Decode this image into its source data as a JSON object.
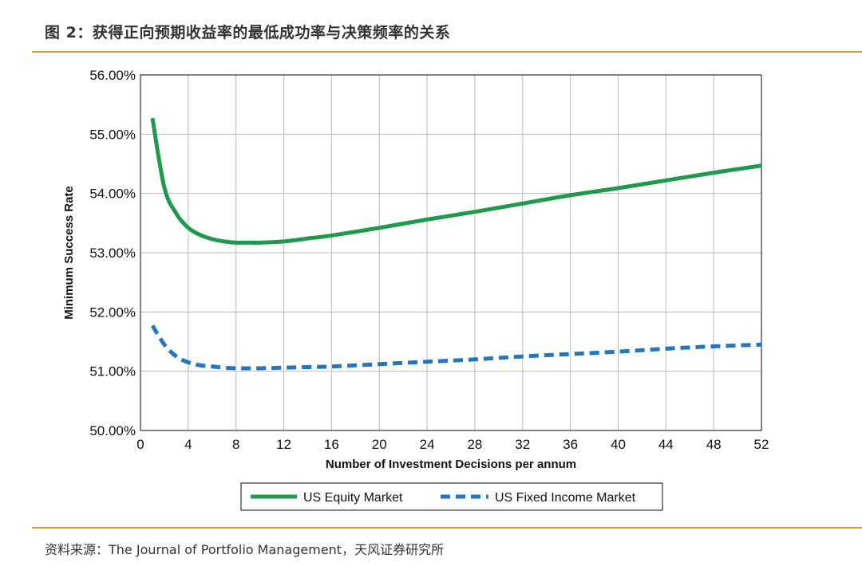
{
  "figure": {
    "title": "图 2：获得正向预期收益率的最低成功率与决策频率的关系",
    "source": "资料来源：The Journal of Portfolio Management，天风证券研究所"
  },
  "colors": {
    "accent_rule": "#e8963c",
    "equity": "#1f9a4c",
    "fixed_income": "#2476bd",
    "grid": "#b9b9b9",
    "axis": "#333333"
  },
  "chart_data": {
    "type": "line",
    "title": "",
    "xlabel": "Number of Investment Decisions per annum",
    "ylabel": "Minimum Success Rate",
    "xlim": [
      0,
      52
    ],
    "ylim": [
      0.5,
      0.56
    ],
    "x_ticks": [
      0,
      4,
      8,
      12,
      16,
      20,
      24,
      28,
      32,
      36,
      40,
      44,
      48,
      52
    ],
    "y_ticks": [
      0.5,
      0.51,
      0.52,
      0.53,
      0.54,
      0.55,
      0.56
    ],
    "x_tick_labels": [
      "0",
      "4",
      "8",
      "12",
      "16",
      "20",
      "24",
      "28",
      "32",
      "36",
      "40",
      "44",
      "48",
      "52"
    ],
    "y_tick_labels": [
      "50.00%",
      "51.00%",
      "52.00%",
      "53.00%",
      "54.00%",
      "55.00%",
      "56.00%"
    ],
    "grid": true,
    "legend_position": "bottom-center",
    "series": [
      {
        "name": "US Equity Market",
        "style": "solid",
        "x": [
          1,
          2,
          3,
          4,
          5,
          6,
          7,
          8,
          9,
          10,
          12,
          14,
          16,
          20,
          24,
          28,
          32,
          36,
          40,
          44,
          48,
          52
        ],
        "values": [
          0.5527,
          0.541,
          0.5366,
          0.5342,
          0.533,
          0.5323,
          0.5319,
          0.5317,
          0.5317,
          0.5317,
          0.5319,
          0.5324,
          0.5329,
          0.5342,
          0.5356,
          0.5369,
          0.5383,
          0.5397,
          0.5409,
          0.5422,
          0.5435,
          0.5447
        ]
      },
      {
        "name": "US Fixed Income Market",
        "style": "dashed",
        "x": [
          1,
          2,
          3,
          4,
          5,
          6,
          7,
          8,
          9,
          10,
          12,
          14,
          16,
          20,
          24,
          28,
          32,
          36,
          40,
          44,
          48,
          52
        ],
        "values": [
          0.5177,
          0.5145,
          0.5125,
          0.5115,
          0.511,
          0.5108,
          0.5106,
          0.5105,
          0.5105,
          0.5105,
          0.5106,
          0.5107,
          0.5108,
          0.5112,
          0.5116,
          0.512,
          0.5125,
          0.5129,
          0.5133,
          0.5138,
          0.5142,
          0.5145
        ]
      }
    ]
  }
}
